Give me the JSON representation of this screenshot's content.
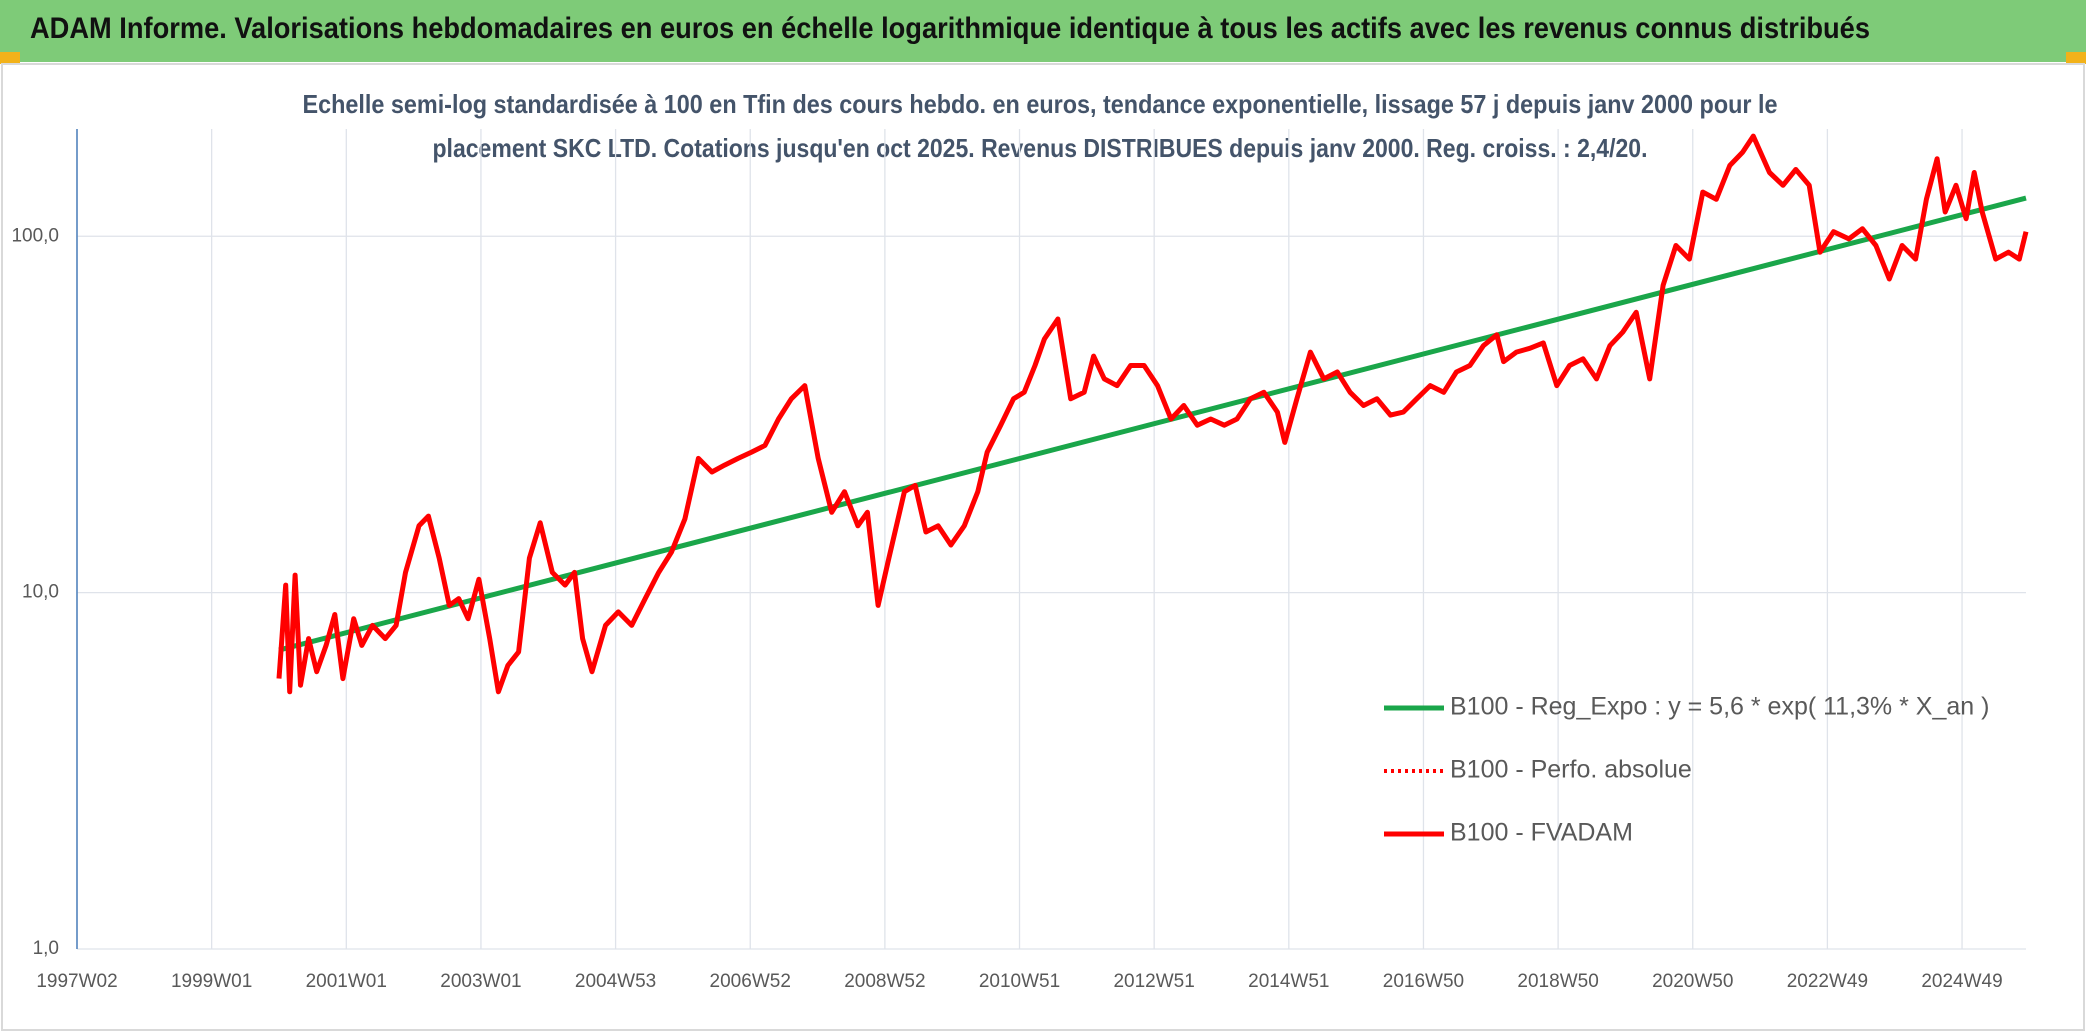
{
  "header": {
    "title": "ADAM Informe. Valorisations hebdomadaires en euros en échelle logarithmique identique à tous les actifs avec les revenus connus distribués"
  },
  "chart_data": {
    "type": "line",
    "subtitle": [
      "Echelle semi-log standardisée à 100 en Tfin des cours hebdo. en euros, tendance exponentielle, lissage 57 j depuis janv 2000 pour le",
      "placement SKC LTD. Cotations jusqu'en oct 2025. Revenus DISTRIBUES depuis janv 2000. Reg. croiss. : 2,4/20."
    ],
    "xlim": [
      1997.0,
      2025.95
    ],
    "xticks": [
      {
        "value": 1997.0,
        "label": "1997W02"
      },
      {
        "value": 1999.0,
        "label": "1999W01"
      },
      {
        "value": 2001.0,
        "label": "2001W01"
      },
      {
        "value": 2003.0,
        "label": "2003W01"
      },
      {
        "value": 2005.0,
        "label": "2004W53"
      },
      {
        "value": 2007.0,
        "label": "2006W52"
      },
      {
        "value": 2009.0,
        "label": "2008W52"
      },
      {
        "value": 2011.0,
        "label": "2010W51"
      },
      {
        "value": 2013.0,
        "label": "2012W51"
      },
      {
        "value": 2015.0,
        "label": "2014W51"
      },
      {
        "value": 2017.0,
        "label": "2016W50"
      },
      {
        "value": 2019.0,
        "label": "2018W50"
      },
      {
        "value": 2021.0,
        "label": "2020W50"
      },
      {
        "value": 2023.0,
        "label": "2022W49"
      },
      {
        "value": 2025.0,
        "label": "2024W49"
      }
    ],
    "ylim": [
      1,
      200
    ],
    "log_scale": true,
    "yticks": [
      {
        "value": 1,
        "label": "1,0"
      },
      {
        "value": 10,
        "label": "10,0"
      },
      {
        "value": 100,
        "label": "100,0"
      }
    ],
    "grid": true,
    "series": [
      {
        "name": "B100 - Reg_Expo : y = 5,6 * exp( 11,3% *  X_an )",
        "color": "#1aa64a",
        "style": "solid",
        "x": [
          2000.0,
          2025.95
        ],
        "values": [
          6.9,
          128
        ]
      },
      {
        "name": "B100 - Perfo. absolue",
        "color": "#ff0000",
        "style": "dotted",
        "x": [],
        "values": []
      },
      {
        "name": "B100 - FVADAM",
        "color": "#ff0000",
        "style": "solid",
        "x": [
          2000.0,
          2000.1,
          2000.16,
          2000.24,
          2000.32,
          2000.44,
          2000.56,
          2000.7,
          2000.83,
          2000.95,
          2001.11,
          2001.23,
          2001.39,
          2001.58,
          2001.74,
          2001.88,
          2002.08,
          2002.22,
          2002.38,
          2002.53,
          2002.67,
          2002.81,
          2002.97,
          2003.13,
          2003.26,
          2003.4,
          2003.56,
          2003.72,
          2003.88,
          2004.06,
          2004.25,
          2004.39,
          2004.51,
          2004.65,
          2004.85,
          2005.04,
          2005.24,
          2005.44,
          2005.64,
          2005.83,
          2006.03,
          2006.23,
          2006.43,
          2006.62,
          2006.82,
          2007.02,
          2007.22,
          2007.42,
          2007.61,
          2007.81,
          2008.01,
          2008.21,
          2008.4,
          2008.6,
          2008.74,
          2008.9,
          2009.06,
          2009.29,
          2009.45,
          2009.61,
          2009.79,
          2009.98,
          2010.18,
          2010.38,
          2010.52,
          2010.72,
          2010.91,
          2011.07,
          2011.23,
          2011.37,
          2011.57,
          2011.76,
          2011.96,
          2012.1,
          2012.26,
          2012.45,
          2012.65,
          2012.85,
          2013.05,
          2013.25,
          2013.44,
          2013.64,
          2013.84,
          2014.04,
          2014.23,
          2014.43,
          2014.63,
          2014.83,
          2014.94,
          2015.12,
          2015.32,
          2015.52,
          2015.72,
          2015.91,
          2016.11,
          2016.31,
          2016.51,
          2016.7,
          2016.9,
          2017.1,
          2017.3,
          2017.49,
          2017.69,
          2017.89,
          2018.09,
          2018.19,
          2018.38,
          2018.58,
          2018.78,
          2018.98,
          2019.17,
          2019.37,
          2019.57,
          2019.77,
          2019.96,
          2020.16,
          2020.36,
          2020.56,
          2020.75,
          2020.95,
          2021.15,
          2021.35,
          2021.55,
          2021.74,
          2021.9,
          2022.14,
          2022.34,
          2022.53,
          2022.73,
          2022.89,
          2023.09,
          2023.32,
          2023.52,
          2023.72,
          2023.92,
          2024.11,
          2024.31,
          2024.47,
          2024.63,
          2024.75,
          2024.91,
          2025.06,
          2025.18,
          2025.3,
          2025.5,
          2025.69,
          2025.85,
          2025.95
        ],
        "values": [
          5.74,
          10.5,
          5.27,
          11.2,
          5.5,
          7.43,
          6.0,
          7.11,
          8.68,
          5.74,
          8.45,
          7.11,
          8.09,
          7.43,
          8.09,
          11.4,
          15.4,
          16.4,
          12.5,
          9.21,
          9.62,
          8.45,
          10.9,
          7.43,
          5.27,
          6.25,
          6.82,
          12.5,
          15.7,
          11.4,
          10.5,
          11.4,
          7.43,
          6.0,
          8.09,
          8.83,
          8.09,
          9.62,
          11.4,
          13.0,
          16.1,
          23.8,
          21.8,
          22.8,
          23.8,
          24.8,
          25.9,
          30.7,
          35.0,
          38.1,
          23.8,
          16.8,
          19.2,
          15.4,
          16.8,
          9.21,
          12.5,
          19.2,
          20.0,
          14.8,
          15.4,
          13.6,
          15.4,
          19.2,
          24.8,
          29.5,
          35.0,
          36.5,
          43.4,
          51.5,
          58.6,
          35.0,
          36.5,
          46.1,
          39.8,
          38.1,
          43.4,
          43.4,
          38.1,
          30.7,
          33.5,
          29.5,
          30.7,
          29.5,
          30.7,
          35.0,
          36.5,
          32.1,
          26.4,
          35.0,
          47.3,
          39.8,
          41.6,
          36.5,
          33.5,
          35.0,
          31.5,
          32.1,
          35.0,
          38.1,
          36.5,
          41.6,
          43.4,
          49.3,
          52.9,
          44.5,
          47.3,
          48.5,
          50.2,
          38.1,
          43.4,
          45.3,
          39.8,
          49.3,
          53.8,
          61.2,
          39.8,
          72.8,
          94.2,
          86.3,
          133,
          127,
          158,
          172,
          191,
          151,
          139,
          154,
          139,
          90.2,
          103,
          98.3,
          105,
          94.2,
          75.9,
          94.2,
          86.3,
          127,
          165,
          117,
          139,
          112,
          151,
          117,
          86.3,
          90.2,
          86.3,
          103
        ]
      }
    ],
    "legend": "lower right"
  }
}
